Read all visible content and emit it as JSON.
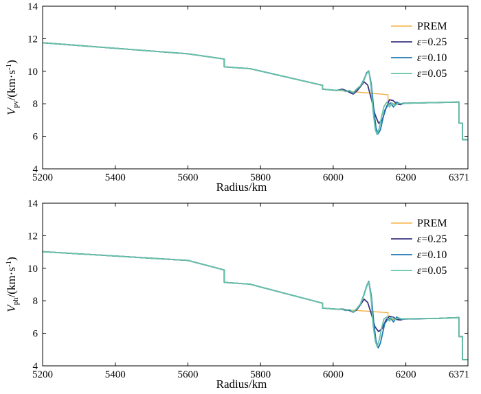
{
  "chart_data": [
    {
      "type": "line",
      "id": "vpv",
      "ylabel": "V_pv/(km·s⁻¹)",
      "ylabel_main": "V",
      "ylabel_sub": "pv",
      "ylabel_unit": "/(km·s",
      "ylabel_exp": "-1",
      "ylabel_close": ")",
      "xlabel": "Radius/km",
      "xlim": [
        5200,
        6371
      ],
      "ylim": [
        4,
        14
      ],
      "xticks": [
        5200,
        5400,
        5600,
        5800,
        6000,
        6200,
        6371
      ],
      "yticks": [
        4,
        6,
        8,
        10,
        12,
        14
      ],
      "legend_position": "top-right",
      "series": [
        {
          "name": "PREM",
          "color": "#f5b041",
          "x": [
            5200,
            5600,
            5700,
            5700,
            5771,
            5971,
            5971,
            6151,
            6151,
            6291,
            6346.6,
            6346.6,
            6356,
            6356,
            6371
          ],
          "y": [
            11.75,
            11.07,
            10.75,
            10.27,
            10.16,
            9.13,
            8.9,
            8.56,
            8.0,
            8.08,
            8.11,
            6.8,
            6.8,
            5.8,
            5.8
          ]
        },
        {
          "name": "ε=0.25",
          "color": "#3a3282",
          "x": [
            5200,
            5600,
            5700,
            5700,
            5771,
            5971,
            5971,
            6010,
            6025,
            6035,
            6045,
            6055,
            6065,
            6075,
            6085,
            6095,
            6105,
            6115,
            6125,
            6135,
            6145,
            6155,
            6165,
            6175,
            6185,
            6195,
            6291,
            6346.6,
            6346.6,
            6356,
            6356,
            6371
          ],
          "y": [
            11.75,
            11.07,
            10.75,
            10.27,
            10.16,
            9.13,
            8.9,
            8.82,
            8.9,
            8.82,
            8.7,
            8.6,
            8.78,
            9.05,
            9.35,
            9.15,
            8.3,
            7.35,
            6.8,
            7.0,
            7.7,
            8.25,
            8.2,
            8.0,
            7.95,
            8.03,
            8.08,
            8.11,
            6.8,
            6.8,
            5.8,
            5.8
          ]
        },
        {
          "name": "ε=0.10",
          "color": "#1f77b4",
          "x": [
            5200,
            5600,
            5700,
            5700,
            5771,
            5971,
            5971,
            6010,
            6025,
            6035,
            6045,
            6055,
            6065,
            6075,
            6085,
            6092,
            6098,
            6105,
            6112,
            6118,
            6124,
            6130,
            6136,
            6142,
            6150,
            6158,
            6166,
            6175,
            6185,
            6195,
            6291,
            6346.6,
            6346.6,
            6356,
            6356,
            6371
          ],
          "y": [
            11.75,
            11.07,
            10.75,
            10.27,
            10.16,
            9.13,
            8.9,
            8.82,
            8.85,
            8.75,
            8.8,
            8.65,
            8.9,
            9.1,
            9.5,
            9.9,
            10.02,
            9.2,
            7.6,
            6.5,
            6.15,
            6.4,
            7.0,
            7.6,
            7.9,
            8.05,
            7.8,
            8.1,
            8.0,
            8.04,
            8.08,
            8.11,
            6.8,
            6.8,
            5.8,
            5.8
          ]
        },
        {
          "name": "ε=0.05",
          "color": "#66c2a5",
          "x": [
            5200,
            5600,
            5700,
            5700,
            5771,
            5971,
            5971,
            6010,
            6025,
            6035,
            6045,
            6055,
            6065,
            6075,
            6085,
            6092,
            6098,
            6104,
            6110,
            6116,
            6121,
            6127,
            6133,
            6140,
            6148,
            6155,
            6162,
            6170,
            6180,
            6190,
            6200,
            6291,
            6346.6,
            6346.6,
            6356,
            6356,
            6371
          ],
          "y": [
            11.75,
            11.07,
            10.75,
            10.27,
            10.16,
            9.13,
            8.9,
            8.82,
            8.84,
            8.76,
            8.82,
            8.68,
            8.92,
            9.1,
            9.45,
            9.85,
            10.0,
            9.1,
            7.5,
            6.4,
            6.1,
            6.5,
            7.2,
            7.85,
            8.1,
            7.8,
            8.05,
            7.9,
            8.05,
            7.98,
            8.04,
            8.08,
            8.11,
            6.8,
            6.8,
            5.8,
            5.8
          ]
        }
      ]
    },
    {
      "type": "line",
      "id": "vph",
      "ylabel": "V_ph/(km·s⁻¹)",
      "ylabel_main": "V",
      "ylabel_sub": "ph",
      "ylabel_unit": "/(km·s",
      "ylabel_exp": "-1",
      "ylabel_close": ")",
      "xlabel": "Radius/km",
      "xlim": [
        5200,
        6371
      ],
      "ylim": [
        4,
        14
      ],
      "xticks": [
        5200,
        5400,
        5600,
        5800,
        6000,
        6200,
        6371
      ],
      "yticks": [
        4,
        6,
        8,
        10,
        12,
        14
      ],
      "legend_position": "top-right",
      "series": [
        {
          "name": "PREM",
          "color": "#f5b041",
          "x": [
            5200,
            5600,
            5700,
            5700,
            5771,
            5971,
            5971,
            6151,
            6151,
            6291,
            6346.6,
            6346.6,
            6356,
            6356,
            6371
          ],
          "y": [
            11.02,
            10.48,
            9.9,
            9.13,
            9.02,
            7.85,
            7.55,
            7.27,
            6.85,
            6.92,
            6.97,
            5.8,
            5.8,
            4.38,
            4.38
          ]
        },
        {
          "name": "ε=0.25",
          "color": "#3a3282",
          "x": [
            5200,
            5600,
            5700,
            5700,
            5771,
            5971,
            5971,
            6010,
            6025,
            6035,
            6045,
            6055,
            6065,
            6075,
            6085,
            6095,
            6105,
            6115,
            6125,
            6135,
            6145,
            6155,
            6165,
            6175,
            6185,
            6195,
            6291,
            6346.6,
            6346.6,
            6356,
            6356,
            6371
          ],
          "y": [
            11.02,
            10.48,
            9.9,
            9.13,
            9.02,
            7.85,
            7.55,
            7.48,
            7.5,
            7.45,
            7.4,
            7.3,
            7.45,
            7.75,
            8.1,
            7.9,
            7.2,
            6.4,
            6.1,
            6.3,
            6.8,
            7.05,
            7.0,
            6.85,
            6.82,
            6.88,
            6.92,
            6.97,
            5.8,
            5.8,
            4.38,
            4.38
          ]
        },
        {
          "name": "ε=0.10",
          "color": "#1f77b4",
          "x": [
            5200,
            5600,
            5700,
            5700,
            5771,
            5971,
            5971,
            6010,
            6025,
            6035,
            6045,
            6055,
            6065,
            6075,
            6085,
            6092,
            6098,
            6105,
            6112,
            6118,
            6124,
            6130,
            6136,
            6142,
            6150,
            6158,
            6166,
            6175,
            6185,
            6195,
            6291,
            6346.6,
            6346.6,
            6356,
            6356,
            6371
          ],
          "y": [
            11.02,
            10.48,
            9.9,
            9.13,
            9.02,
            7.85,
            7.55,
            7.48,
            7.47,
            7.4,
            7.45,
            7.3,
            7.5,
            7.8,
            8.4,
            8.9,
            9.2,
            8.3,
            6.6,
            5.5,
            5.1,
            5.4,
            6.0,
            6.6,
            6.85,
            6.95,
            6.7,
            7.0,
            6.85,
            6.88,
            6.92,
            6.97,
            5.8,
            5.8,
            4.38,
            4.38
          ]
        },
        {
          "name": "ε=0.05",
          "color": "#66c2a5",
          "x": [
            5200,
            5600,
            5700,
            5700,
            5771,
            5971,
            5971,
            6010,
            6025,
            6035,
            6045,
            6055,
            6065,
            6075,
            6085,
            6092,
            6098,
            6104,
            6110,
            6116,
            6121,
            6127,
            6133,
            6140,
            6148,
            6155,
            6162,
            6170,
            6180,
            6190,
            6200,
            6291,
            6346.6,
            6346.6,
            6356,
            6356,
            6371
          ],
          "y": [
            11.02,
            10.48,
            9.9,
            9.13,
            9.02,
            7.85,
            7.55,
            7.48,
            7.49,
            7.42,
            7.46,
            7.32,
            7.52,
            7.8,
            8.35,
            8.85,
            9.15,
            8.2,
            6.5,
            5.5,
            5.2,
            5.6,
            6.3,
            6.9,
            7.0,
            6.75,
            7.0,
            6.85,
            6.95,
            6.88,
            6.9,
            6.92,
            6.97,
            5.8,
            5.8,
            4.38,
            4.38
          ]
        }
      ]
    }
  ]
}
